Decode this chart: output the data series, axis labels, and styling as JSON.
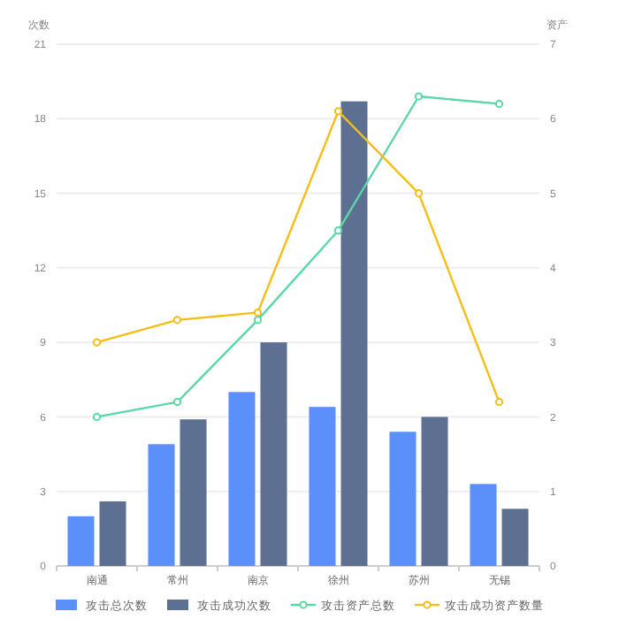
{
  "chart_data": {
    "type": "bar",
    "ylabel": "次数",
    "y2label": "资产",
    "categories": [
      "南通",
      "常州",
      "南京",
      "徐州",
      "苏州",
      "无锡"
    ],
    "series": [
      {
        "name": "攻击总次数",
        "color": "#5b8ff9",
        "values": [
          2,
          4.9,
          7,
          6.4,
          5.4,
          3.3
        ]
      },
      {
        "name": "攻击成功次数",
        "color": "#5d7092",
        "values": [
          2.6,
          5.9,
          9,
          18.7,
          6,
          2.3
        ]
      },
      {
        "name": "攻击资产总数",
        "type": "line",
        "axis": "y2",
        "color": "#5ad8a6",
        "values": [
          2,
          2.2,
          3.3,
          4.5,
          6.3,
          6.2
        ]
      },
      {
        "name": "攻击成功资产数量",
        "type": "line",
        "axis": "y2",
        "color": "#f6bd16",
        "values": [
          3,
          3.3,
          3.4,
          6.1,
          5,
          2.2
        ]
      }
    ],
    "ylim": [
      0,
      21
    ],
    "yticks": [
      0,
      3,
      6,
      9,
      12,
      15,
      18,
      21
    ],
    "y2lim": [
      0,
      7
    ],
    "y2ticks": [
      0,
      1,
      2,
      3,
      4,
      5,
      6,
      7
    ],
    "grid": "y",
    "legend": "bottom",
    "marker": "circle",
    "line_style": "solid"
  }
}
